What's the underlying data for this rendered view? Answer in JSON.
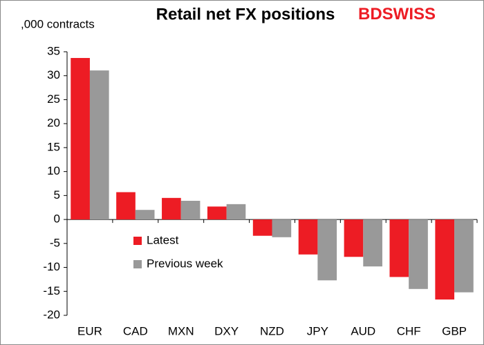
{
  "chart_data": {
    "type": "bar",
    "title": "Retail net FX positions",
    "y_label": ",000 contracts",
    "logo": {
      "left": "BD",
      "right": "SWISS"
    },
    "categories": [
      "EUR",
      "CAD",
      "MXN",
      "DXY",
      "NZD",
      "JPY",
      "AUD",
      "CHF",
      "GBP"
    ],
    "series": [
      {
        "name": "Latest",
        "color": "#ed1c24",
        "values": [
          33.7,
          5.7,
          4.5,
          2.7,
          -3.4,
          -7.3,
          -7.8,
          -12,
          -16.7
        ]
      },
      {
        "name": "Previous week",
        "color": "#999999",
        "values": [
          31.1,
          2,
          3.9,
          3.2,
          -3.7,
          -12.7,
          -9.8,
          -14.5,
          -15.2
        ]
      }
    ],
    "ylim": [
      -20,
      35
    ],
    "yticks": [
      -20,
      -15,
      -10,
      -5,
      0,
      5,
      10,
      15,
      20,
      25,
      30,
      35
    ],
    "grid": false,
    "legend": "inside-lower-left"
  }
}
